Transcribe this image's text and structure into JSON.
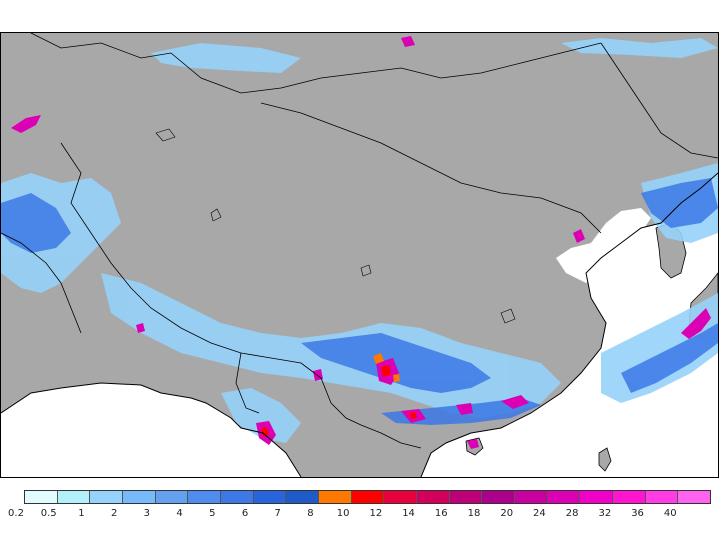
{
  "map": {
    "background_color": "#a8a8a8",
    "coast_color": "#000000",
    "ocean_color": "#ffffff"
  },
  "legend": {
    "labels": [
      "0.2",
      "0.5",
      "1",
      "2",
      "3",
      "4",
      "5",
      "6",
      "7",
      "8",
      "10",
      "12",
      "14",
      "16",
      "18",
      "20",
      "24",
      "28",
      "32",
      "36",
      "40"
    ],
    "colors": [
      "#e0fcff",
      "#b4f0fa",
      "#96d2fa",
      "#78b9fa",
      "#64a0f0",
      "#508cf0",
      "#3c78e6",
      "#2864dc",
      "#1e5ac8",
      "#ff7800",
      "#ff0000",
      "#e6003c",
      "#d2005a",
      "#be0078",
      "#aa008c",
      "#c800a0",
      "#dc00b4",
      "#f000c8",
      "#ff14d2",
      "#ff3ce6",
      "#ff64f0"
    ]
  }
}
